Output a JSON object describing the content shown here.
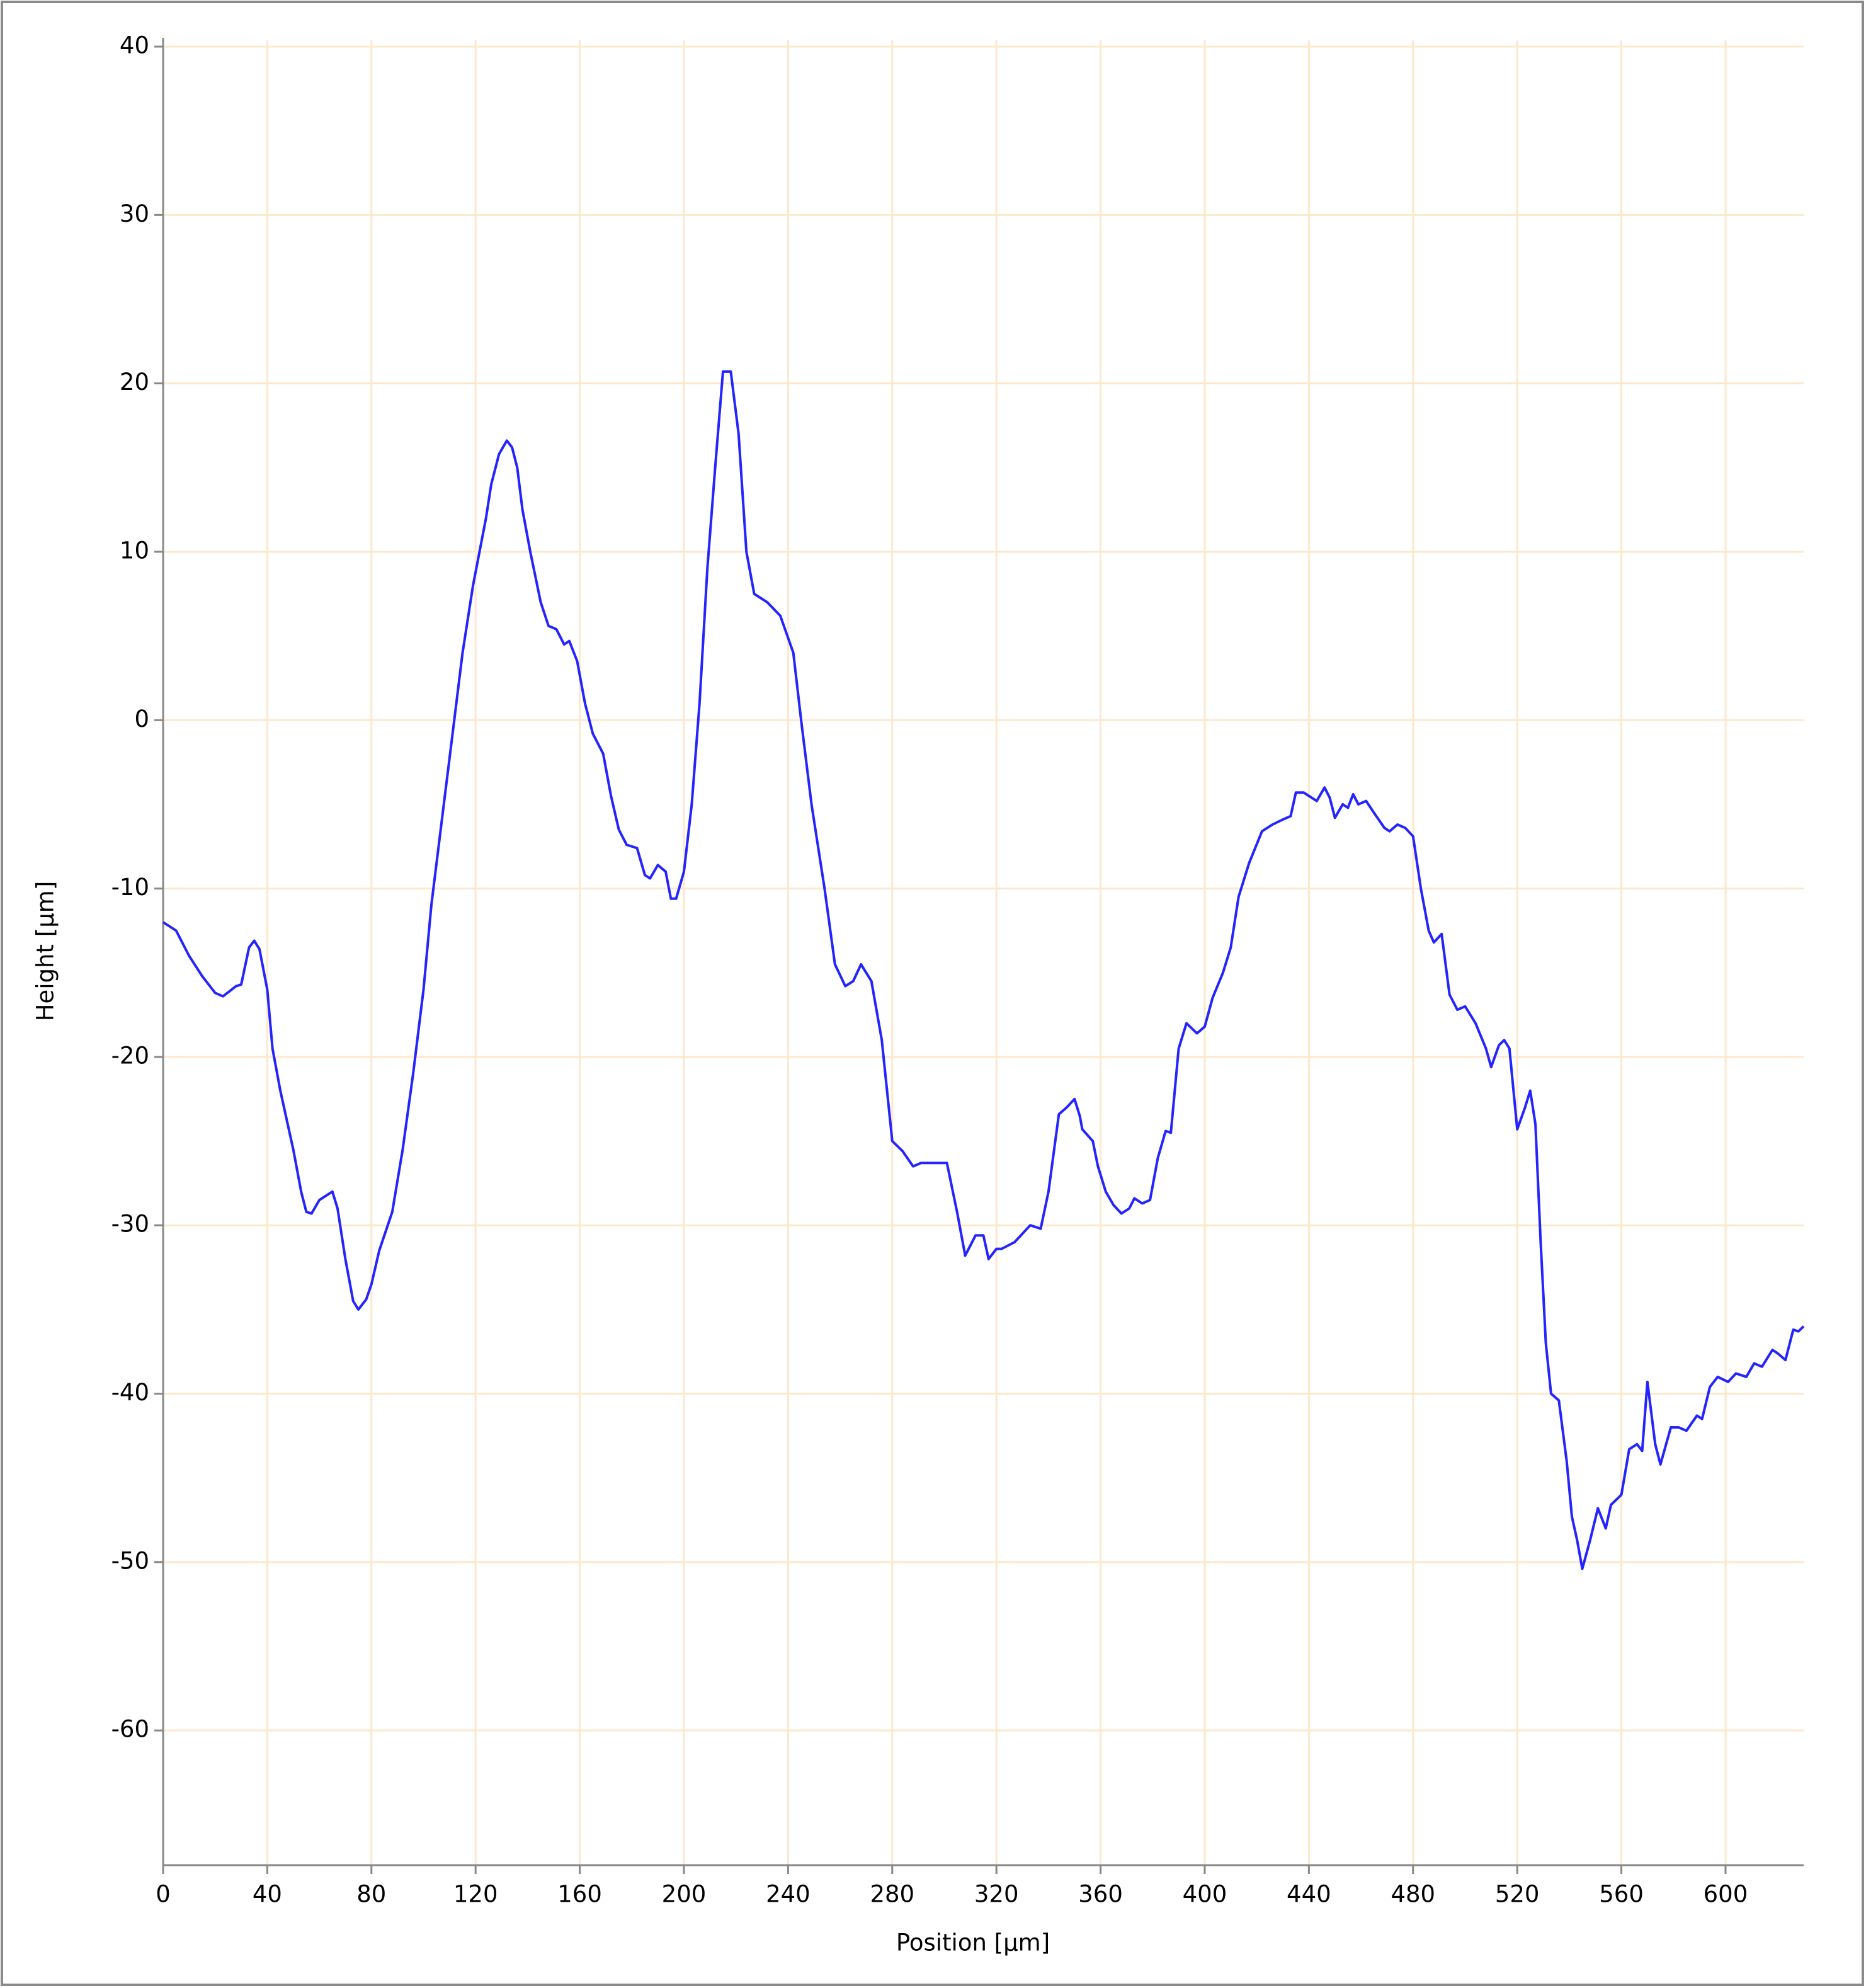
{
  "chart_data": {
    "type": "line",
    "x_label": "Position [µm]",
    "y_label": "Height [µm]",
    "xlim": [
      0,
      630
    ],
    "ylim": [
      -68,
      40
    ],
    "xticks": [
      0,
      40,
      80,
      120,
      160,
      200,
      240,
      280,
      320,
      360,
      400,
      440,
      480,
      520,
      560,
      600
    ],
    "yticks": [
      40,
      30,
      20,
      10,
      0,
      -10,
      -20,
      -30,
      -40,
      -50,
      -60
    ],
    "grid": true,
    "grid_color": "#fde8cc",
    "series": [
      {
        "name": "Height",
        "color": "#2424ff",
        "x": [
          0,
          5,
          10,
          15,
          20,
          23,
          28,
          30,
          33,
          35,
          37,
          40,
          42,
          45,
          50,
          53,
          55,
          57,
          60,
          65,
          67,
          70,
          73,
          75,
          78,
          80,
          83,
          88,
          92,
          96,
          100,
          103,
          107,
          111,
          115,
          119,
          124,
          126,
          129,
          132,
          134,
          136,
          138,
          141,
          145,
          148,
          151,
          154,
          156,
          159,
          162,
          165,
          169,
          172,
          175,
          178,
          182,
          185,
          187,
          190,
          193,
          195,
          197,
          200,
          203,
          206,
          209,
          212,
          215,
          218,
          221,
          224,
          227,
          232,
          237,
          242,
          245,
          249,
          254,
          258,
          262,
          265,
          268,
          272,
          276,
          280,
          284,
          288,
          291,
          297,
          301,
          305,
          308,
          312,
          315,
          317,
          320,
          322,
          327,
          333,
          337,
          340,
          344,
          347,
          350,
          352,
          353,
          357,
          359,
          362,
          365,
          368,
          371,
          373,
          376,
          379,
          382,
          385,
          387,
          390,
          393,
          397,
          400,
          403,
          407,
          410,
          413,
          417,
          422,
          426,
          430,
          433,
          435,
          438,
          441,
          443,
          446,
          448,
          450,
          453,
          455,
          457,
          459,
          462,
          465,
          469,
          471,
          474,
          477,
          480,
          483,
          486,
          488,
          491,
          494,
          497,
          500,
          504,
          508,
          510,
          513,
          515,
          517,
          520,
          523,
          525,
          527,
          529,
          531,
          533,
          536,
          539,
          541,
          543,
          545,
          548,
          551,
          554,
          556,
          560,
          563,
          566,
          568,
          570,
          573,
          575,
          579,
          582,
          585,
          589,
          591,
          594,
          597,
          601,
          604,
          608,
          611,
          614,
          618,
          620,
          623,
          626,
          628,
          630
        ],
        "values": [
          -12,
          -12.5,
          -14,
          -15.2,
          -16.2,
          -16.4,
          -15.8,
          -15.7,
          -13.5,
          -13.1,
          -13.6,
          -16,
          -19.5,
          -22,
          -25.5,
          -28,
          -29.2,
          -29.3,
          -28.5,
          -28,
          -29,
          -32,
          -34.5,
          -35,
          -34.4,
          -33.5,
          -31.5,
          -29.2,
          -25.5,
          -21,
          -16,
          -11,
          -6,
          -1,
          4,
          8,
          12,
          14,
          15.8,
          16.6,
          16.2,
          15,
          12.5,
          10,
          7,
          5.6,
          5.4,
          4.5,
          4.7,
          3.5,
          1,
          -0.8,
          -2,
          -4.5,
          -6.5,
          -7.4,
          -7.6,
          -9.2,
          -9.4,
          -8.6,
          -9,
          -10.6,
          -10.6,
          -9,
          -5,
          1,
          9,
          15,
          20.7,
          20.7,
          17,
          10,
          7.5,
          7,
          6.2,
          4,
          0,
          -5,
          -10,
          -14.5,
          -15.8,
          -15.5,
          -14.5,
          -15.5,
          -19,
          -25,
          -25.6,
          -26.5,
          -26.3,
          -26.3,
          -26.3,
          -29.3,
          -31.8,
          -30.6,
          -30.6,
          -32,
          -31.4,
          -31.4,
          -31,
          -30,
          -30.2,
          -28,
          -23.4,
          -23,
          -22.5,
          -23.5,
          -24.3,
          -25,
          -26.5,
          -28,
          -28.8,
          -29.3,
          -29,
          -28.4,
          -28.7,
          -28.5,
          -26,
          -24.4,
          -24.5,
          -19.5,
          -18,
          -18.6,
          -18.2,
          -16.5,
          -15,
          -13.5,
          -10.5,
          -8.5,
          -6.6,
          -6.2,
          -5.9,
          -5.7,
          -4.3,
          -4.3,
          -4.6,
          -4.8,
          -4,
          -4.6,
          -5.8,
          -5,
          -5.2,
          -4.4,
          -5,
          -4.8,
          -5.5,
          -6.4,
          -6.6,
          -6.2,
          -6.4,
          -6.9,
          -10,
          -12.5,
          -13.2,
          -12.7,
          -16.3,
          -17.2,
          -17,
          -18,
          -19.5,
          -20.6,
          -19.3,
          -19,
          -19.5,
          -24.3,
          -23,
          -22,
          -24,
          -31,
          -37,
          -40,
          -40.4,
          -44,
          -47.3,
          -48.7,
          -50.4,
          -48.7,
          -46.8,
          -48,
          -46.6,
          -46,
          -43.3,
          -43,
          -43.4,
          -39.3,
          -43,
          -44.2,
          -42,
          -42,
          -42.2,
          -41.3,
          -41.5,
          -39.6,
          -39,
          -39.3,
          -38.8,
          -39,
          -38.2,
          -38.4,
          -37.4,
          -37.6,
          -38,
          -36.2,
          -36.3,
          -36
        ]
      }
    ]
  }
}
